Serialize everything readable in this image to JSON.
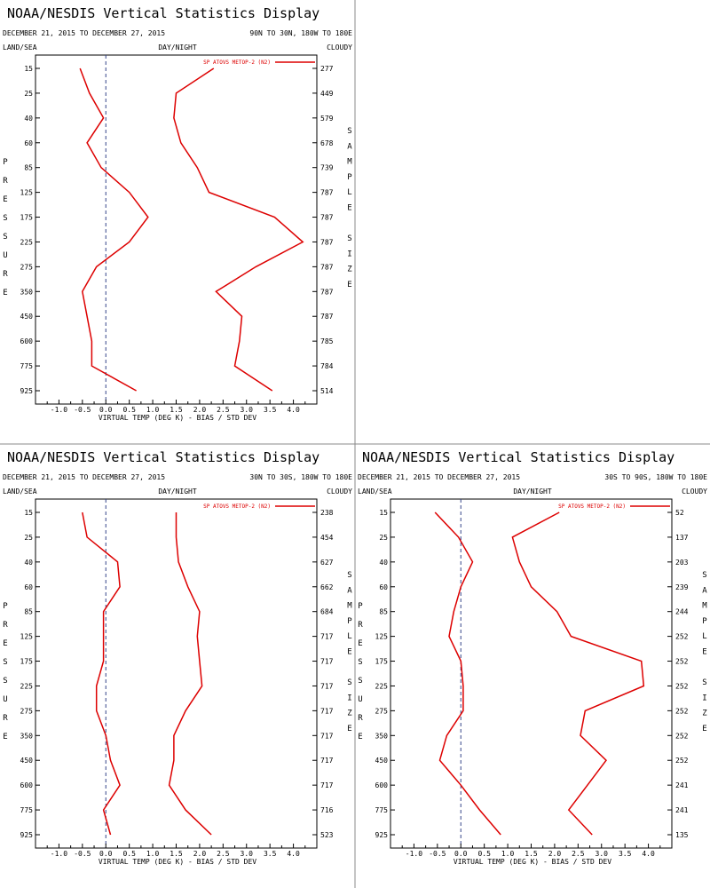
{
  "chart_data": [
    {
      "type": "line",
      "title": "NOAA/NESDIS Vertical Statistics Display",
      "date_range": "DECEMBER 21, 2015 TO DECEMBER 27, 2015",
      "region": "90N TO 30N, 180W TO 180E",
      "left_label": "LAND/SEA",
      "center_label": "DAY/NIGHT",
      "right_label": "CLOUDY",
      "xlabel": "VIRTUAL TEMP (DEG K) - BIAS / STD DEV",
      "xlim": [
        -1.5,
        4.5
      ],
      "xticks": [
        "-1.0",
        "-0.5",
        "0.0",
        "0.5",
        "1.0",
        "1.5",
        "2.0",
        "2.5",
        "3.0",
        "3.5",
        "4.0"
      ],
      "left_axis_title": "PRESSURE",
      "right_axis_title": "SAMPLE SIZE",
      "legend": "SP ATOVS METOP-2 (N2)",
      "pressure_levels": [
        "15",
        "25",
        "40",
        "60",
        "85",
        "125",
        "175",
        "225",
        "275",
        "350",
        "450",
        "600",
        "775",
        "925"
      ],
      "sample_size": [
        "277",
        "449",
        "579",
        "678",
        "739",
        "787",
        "787",
        "787",
        "787",
        "787",
        "787",
        "785",
        "784",
        "514"
      ],
      "series": [
        {
          "kind": "bias",
          "values": [
            -0.55,
            -0.35,
            -0.05,
            -0.4,
            -0.1,
            0.5,
            0.9,
            0.5,
            -0.2,
            -0.5,
            -0.4,
            -0.3,
            -0.3,
            0.65
          ]
        },
        {
          "kind": "std_dev",
          "values": [
            2.3,
            1.5,
            1.45,
            1.6,
            1.95,
            2.2,
            3.6,
            4.2,
            3.2,
            2.35,
            2.9,
            2.85,
            2.75,
            3.55
          ]
        }
      ]
    },
    {
      "type": "line",
      "title": "NOAA/NESDIS Vertical Statistics Display",
      "date_range": "DECEMBER 21, 2015 TO DECEMBER 27, 2015",
      "region": "30N TO 30S, 180W TO 180E",
      "left_label": "LAND/SEA",
      "center_label": "DAY/NIGHT",
      "right_label": "CLOUDY",
      "xlabel": "VIRTUAL TEMP (DEG K) - BIAS / STD DEV",
      "xlim": [
        -1.5,
        4.5
      ],
      "xticks": [
        "-1.0",
        "-0.5",
        "0.0",
        "0.5",
        "1.0",
        "1.5",
        "2.0",
        "2.5",
        "3.0",
        "3.5",
        "4.0"
      ],
      "left_axis_title": "PRESSURE",
      "right_axis_title": "SAMPLE SIZE",
      "legend": "SP ATOVS METOP-2 (N2)",
      "pressure_levels": [
        "15",
        "25",
        "40",
        "60",
        "85",
        "125",
        "175",
        "225",
        "275",
        "350",
        "450",
        "600",
        "775",
        "925"
      ],
      "sample_size": [
        "238",
        "454",
        "627",
        "662",
        "684",
        "717",
        "717",
        "717",
        "717",
        "717",
        "717",
        "717",
        "716",
        "523"
      ],
      "series": [
        {
          "kind": "bias",
          "values": [
            -0.5,
            -0.4,
            0.25,
            0.3,
            -0.05,
            -0.05,
            -0.05,
            -0.2,
            -0.2,
            0.0,
            0.1,
            0.3,
            -0.05,
            0.1
          ]
        },
        {
          "kind": "std_dev",
          "values": [
            1.5,
            1.5,
            1.55,
            1.75,
            2.0,
            1.95,
            2.0,
            2.05,
            1.7,
            1.45,
            1.45,
            1.35,
            1.7,
            2.25
          ]
        }
      ]
    },
    {
      "type": "line",
      "title": "NOAA/NESDIS Vertical Statistics Display",
      "date_range": "DECEMBER 21, 2015 TO DECEMBER 27, 2015",
      "region": "30S TO 90S, 180W TO 180E",
      "left_label": "LAND/SEA",
      "center_label": "DAY/NIGHT",
      "right_label": "CLOUDY",
      "xlabel": "VIRTUAL TEMP (DEG K) - BIAS / STD DEV",
      "xlim": [
        -1.5,
        4.5
      ],
      "xticks": [
        "-1.0",
        "-0.5",
        "0.0",
        "0.5",
        "1.0",
        "1.5",
        "2.0",
        "2.5",
        "3.0",
        "3.5",
        "4.0"
      ],
      "left_axis_title": "PRESSURE",
      "right_axis_title": "SAMPLE SIZE",
      "legend": "SP ATOVS METOP-2 (N2)",
      "pressure_levels": [
        "15",
        "25",
        "40",
        "60",
        "85",
        "125",
        "175",
        "225",
        "275",
        "350",
        "450",
        "600",
        "775",
        "925"
      ],
      "sample_size": [
        "52",
        "137",
        "203",
        "239",
        "244",
        "252",
        "252",
        "252",
        "252",
        "252",
        "252",
        "241",
        "241",
        "135"
      ],
      "series": [
        {
          "kind": "bias",
          "values": [
            -0.55,
            -0.05,
            0.25,
            0.0,
            -0.15,
            -0.25,
            0.0,
            0.05,
            0.05,
            -0.3,
            -0.45,
            0.0,
            0.4,
            0.85
          ]
        },
        {
          "kind": "std_dev",
          "values": [
            2.1,
            1.1,
            1.25,
            1.5,
            2.05,
            2.35,
            3.85,
            3.9,
            2.65,
            2.55,
            3.1,
            2.7,
            2.3,
            2.8
          ]
        }
      ]
    }
  ],
  "colors": {
    "line": "#dd0000",
    "zero_line": "#334488",
    "frame": "#000000",
    "divider": "#888888"
  }
}
